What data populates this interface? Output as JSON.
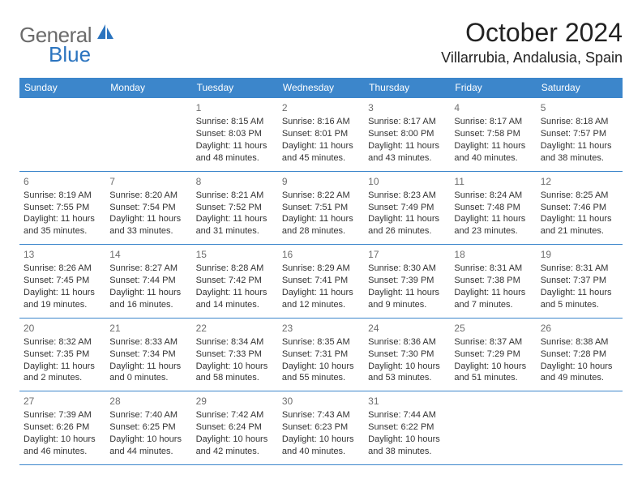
{
  "logo": {
    "general": "General",
    "blue": "Blue",
    "sail_color": "#2b74bf"
  },
  "title": "October 2024",
  "location": "Villarrubia, Andalusia, Spain",
  "header_bg": "#3c86cb",
  "divider_color": "#3c86cb",
  "day_names": [
    "Sunday",
    "Monday",
    "Tuesday",
    "Wednesday",
    "Thursday",
    "Friday",
    "Saturday"
  ],
  "weeks": [
    [
      null,
      null,
      {
        "n": "1",
        "sr": "8:15 AM",
        "ss": "8:03 PM",
        "dl": "11 hours and 48 minutes."
      },
      {
        "n": "2",
        "sr": "8:16 AM",
        "ss": "8:01 PM",
        "dl": "11 hours and 45 minutes."
      },
      {
        "n": "3",
        "sr": "8:17 AM",
        "ss": "8:00 PM",
        "dl": "11 hours and 43 minutes."
      },
      {
        "n": "4",
        "sr": "8:17 AM",
        "ss": "7:58 PM",
        "dl": "11 hours and 40 minutes."
      },
      {
        "n": "5",
        "sr": "8:18 AM",
        "ss": "7:57 PM",
        "dl": "11 hours and 38 minutes."
      }
    ],
    [
      {
        "n": "6",
        "sr": "8:19 AM",
        "ss": "7:55 PM",
        "dl": "11 hours and 35 minutes."
      },
      {
        "n": "7",
        "sr": "8:20 AM",
        "ss": "7:54 PM",
        "dl": "11 hours and 33 minutes."
      },
      {
        "n": "8",
        "sr": "8:21 AM",
        "ss": "7:52 PM",
        "dl": "11 hours and 31 minutes."
      },
      {
        "n": "9",
        "sr": "8:22 AM",
        "ss": "7:51 PM",
        "dl": "11 hours and 28 minutes."
      },
      {
        "n": "10",
        "sr": "8:23 AM",
        "ss": "7:49 PM",
        "dl": "11 hours and 26 minutes."
      },
      {
        "n": "11",
        "sr": "8:24 AM",
        "ss": "7:48 PM",
        "dl": "11 hours and 23 minutes."
      },
      {
        "n": "12",
        "sr": "8:25 AM",
        "ss": "7:46 PM",
        "dl": "11 hours and 21 minutes."
      }
    ],
    [
      {
        "n": "13",
        "sr": "8:26 AM",
        "ss": "7:45 PM",
        "dl": "11 hours and 19 minutes."
      },
      {
        "n": "14",
        "sr": "8:27 AM",
        "ss": "7:44 PM",
        "dl": "11 hours and 16 minutes."
      },
      {
        "n": "15",
        "sr": "8:28 AM",
        "ss": "7:42 PM",
        "dl": "11 hours and 14 minutes."
      },
      {
        "n": "16",
        "sr": "8:29 AM",
        "ss": "7:41 PM",
        "dl": "11 hours and 12 minutes."
      },
      {
        "n": "17",
        "sr": "8:30 AM",
        "ss": "7:39 PM",
        "dl": "11 hours and 9 minutes."
      },
      {
        "n": "18",
        "sr": "8:31 AM",
        "ss": "7:38 PM",
        "dl": "11 hours and 7 minutes."
      },
      {
        "n": "19",
        "sr": "8:31 AM",
        "ss": "7:37 PM",
        "dl": "11 hours and 5 minutes."
      }
    ],
    [
      {
        "n": "20",
        "sr": "8:32 AM",
        "ss": "7:35 PM",
        "dl": "11 hours and 2 minutes."
      },
      {
        "n": "21",
        "sr": "8:33 AM",
        "ss": "7:34 PM",
        "dl": "11 hours and 0 minutes."
      },
      {
        "n": "22",
        "sr": "8:34 AM",
        "ss": "7:33 PM",
        "dl": "10 hours and 58 minutes."
      },
      {
        "n": "23",
        "sr": "8:35 AM",
        "ss": "7:31 PM",
        "dl": "10 hours and 55 minutes."
      },
      {
        "n": "24",
        "sr": "8:36 AM",
        "ss": "7:30 PM",
        "dl": "10 hours and 53 minutes."
      },
      {
        "n": "25",
        "sr": "8:37 AM",
        "ss": "7:29 PM",
        "dl": "10 hours and 51 minutes."
      },
      {
        "n": "26",
        "sr": "8:38 AM",
        "ss": "7:28 PM",
        "dl": "10 hours and 49 minutes."
      }
    ],
    [
      {
        "n": "27",
        "sr": "7:39 AM",
        "ss": "6:26 PM",
        "dl": "10 hours and 46 minutes."
      },
      {
        "n": "28",
        "sr": "7:40 AM",
        "ss": "6:25 PM",
        "dl": "10 hours and 44 minutes."
      },
      {
        "n": "29",
        "sr": "7:42 AM",
        "ss": "6:24 PM",
        "dl": "10 hours and 42 minutes."
      },
      {
        "n": "30",
        "sr": "7:43 AM",
        "ss": "6:23 PM",
        "dl": "10 hours and 40 minutes."
      },
      {
        "n": "31",
        "sr": "7:44 AM",
        "ss": "6:22 PM",
        "dl": "10 hours and 38 minutes."
      },
      null,
      null
    ]
  ],
  "labels": {
    "sunrise": "Sunrise: ",
    "sunset": "Sunset: ",
    "daylight": "Daylight: "
  }
}
